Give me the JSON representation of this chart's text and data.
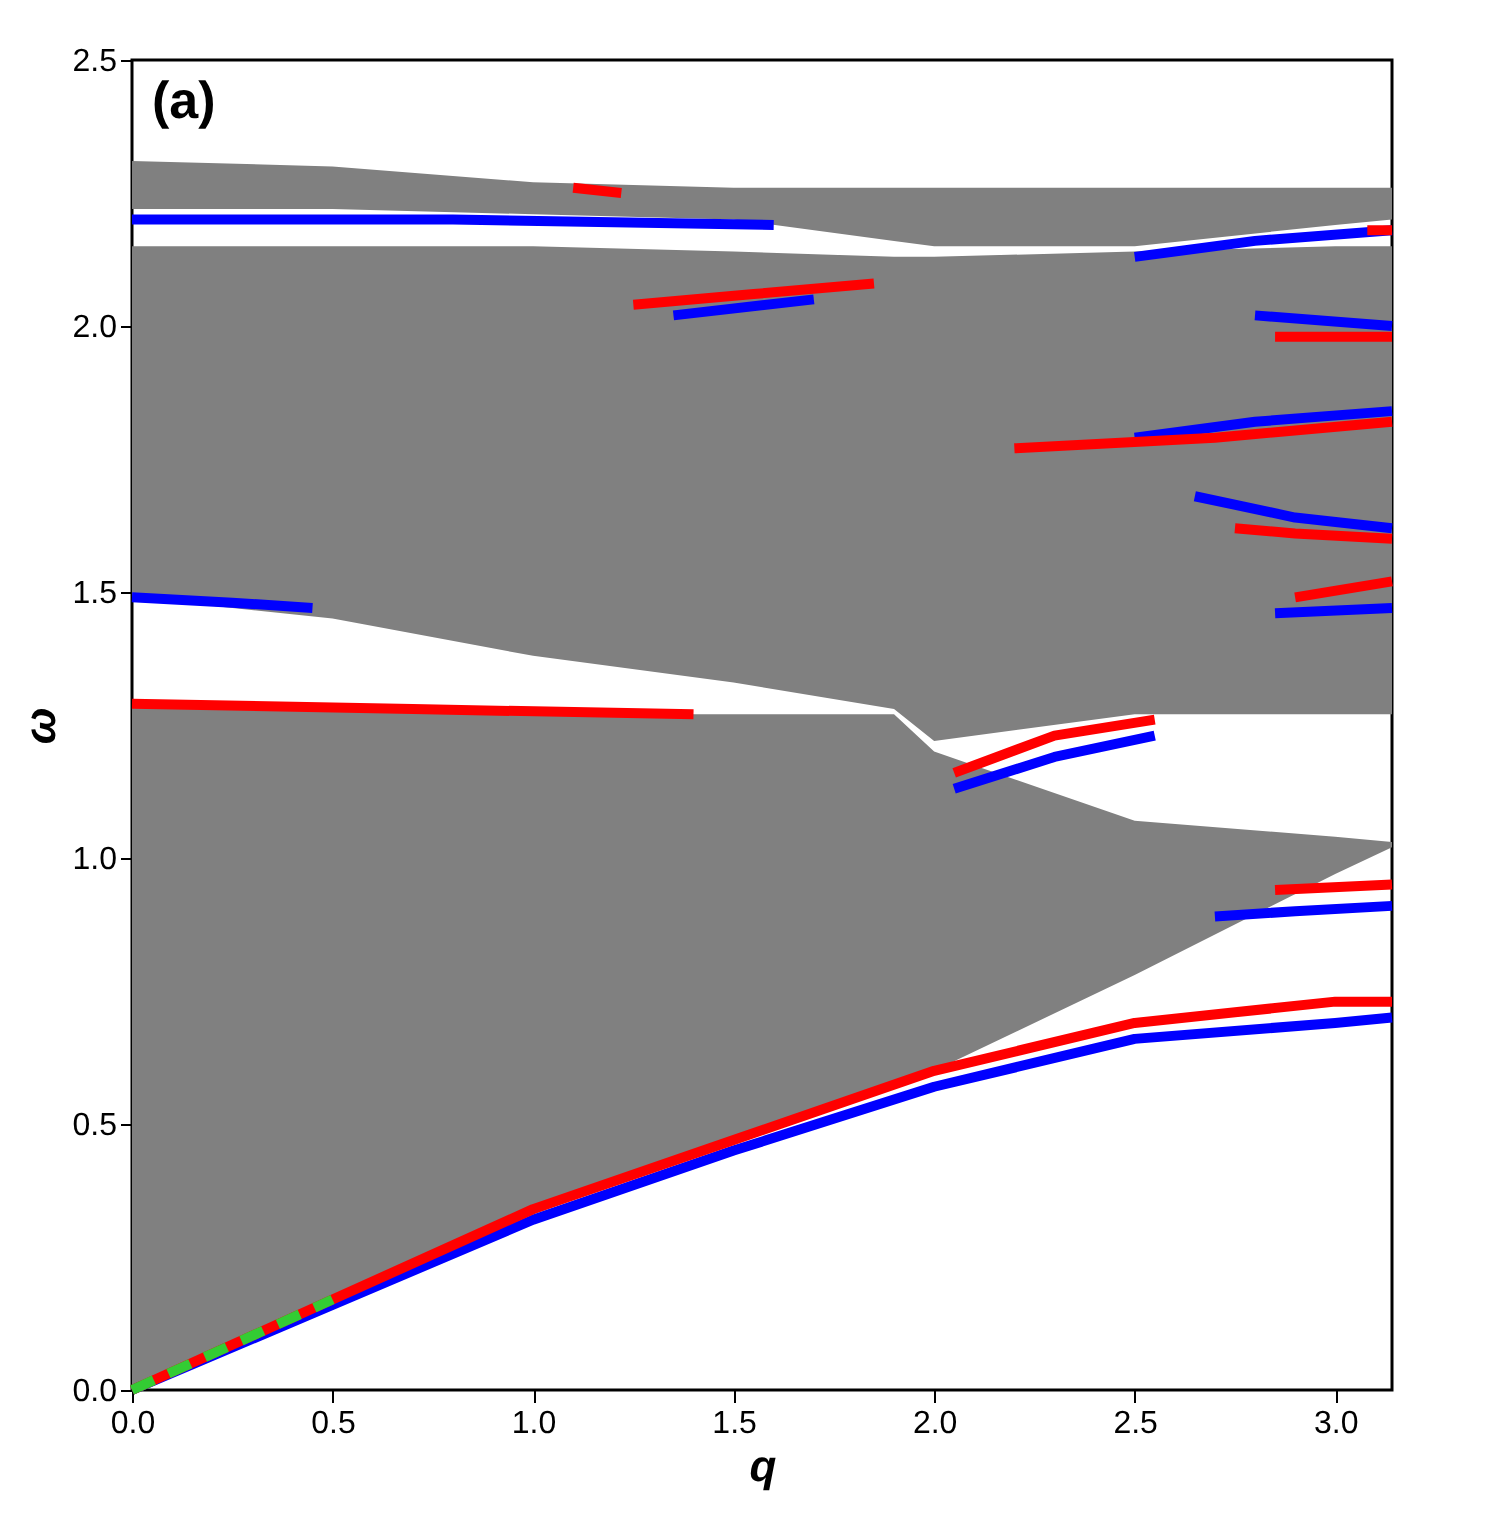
{
  "chart_data": {
    "type": "line",
    "xlabel": "q",
    "ylabel": "ω",
    "annotations": [
      "(a)"
    ],
    "xlim": [
      0,
      3.14159
    ],
    "ylim": [
      0,
      2.5
    ],
    "xticks": [
      {
        "value": 0,
        "label": "0.0"
      },
      {
        "value": 0.5,
        "label": "0.5"
      },
      {
        "value": 1,
        "label": "1.0"
      },
      {
        "value": 1.5,
        "label": "1.5"
      },
      {
        "value": 2,
        "label": "2.0"
      },
      {
        "value": 2.5,
        "label": "2.5"
      },
      {
        "value": 3,
        "label": "3.0"
      }
    ],
    "yticks": [
      {
        "value": 0,
        "label": "0.0"
      },
      {
        "value": 0.5,
        "label": "0.5"
      },
      {
        "value": 1,
        "label": "1.0"
      },
      {
        "value": 1.5,
        "label": "1.5"
      },
      {
        "value": 2,
        "label": "2.0"
      },
      {
        "value": 2.5,
        "label": "2.5"
      }
    ],
    "grid": false,
    "series": [
      {
        "color": "#808080",
        "x": [
          0,
          0.5,
          1,
          1.5,
          1.9,
          2,
          2.5,
          3,
          3.14159
        ],
        "values": [
          null,
          null,
          null,
          null,
          null,
          null,
          null,
          null,
          null
        ],
        "lower": [
          0,
          0.17,
          0.33,
          0.47,
          0.575,
          0.6,
          0.78,
          0.97,
          1.02
        ],
        "upper": [
          1.29,
          1.28,
          1.27,
          1.27,
          1.27,
          1.2,
          1.07,
          1.04,
          1.03
        ]
      },
      {
        "color": "#808080",
        "x": [
          0,
          0.5,
          1,
          1.5,
          1.9,
          2,
          2.5,
          3,
          3.14159
        ],
        "values": [
          null,
          null,
          null,
          null,
          null,
          null,
          null,
          null,
          null
        ],
        "lower": [
          1.49,
          1.45,
          1.38,
          1.33,
          1.28,
          1.22,
          1.27,
          1.27,
          1.27
        ],
        "upper": [
          2.15,
          2.15,
          2.15,
          2.14,
          2.13,
          2.13,
          2.14,
          2.15,
          2.15
        ]
      },
      {
        "color": "#808080",
        "x": [
          0,
          0.5,
          1,
          1.5,
          1.9,
          2,
          2.5,
          3,
          3.14159
        ],
        "values": [
          null,
          null,
          null,
          null,
          null,
          null,
          null,
          null,
          null
        ],
        "lower": [
          2.22,
          2.22,
          2.21,
          2.2,
          2.16,
          2.15,
          2.15,
          2.19,
          2.2
        ],
        "upper": [
          2.31,
          2.3,
          2.27,
          2.26,
          2.26,
          2.26,
          2.26,
          2.26,
          2.26
        ]
      },
      {
        "color": "#0000ff",
        "x": [
          0,
          0.8,
          1.6
        ],
        "values": [
          2.2,
          2.2,
          2.19
        ]
      },
      {
        "color": "#0000ff",
        "x": [
          0,
          0.25,
          0.45
        ],
        "values": [
          1.49,
          1.48,
          1.47
        ]
      },
      {
        "color": "#0000ff",
        "x": [
          0,
          0.5,
          1,
          1.5,
          2,
          2.5,
          3,
          3.14159
        ],
        "values": [
          0,
          0.16,
          0.32,
          0.45,
          0.57,
          0.66,
          0.69,
          0.7
        ]
      },
      {
        "color": "#0000ff",
        "x": [
          2.05,
          2.3,
          2.55
        ],
        "values": [
          1.13,
          1.19,
          1.23
        ]
      },
      {
        "color": "#0000ff",
        "x": [
          2.7,
          2.9,
          3.14159
        ],
        "values": [
          0.89,
          0.9,
          0.91
        ]
      },
      {
        "color": "#0000ff",
        "x": [
          2.5,
          2.8,
          3.14159
        ],
        "values": [
          2.13,
          2.16,
          2.18
        ]
      },
      {
        "color": "#0000ff",
        "x": [
          1.35,
          1.7
        ],
        "values": [
          2.02,
          2.05
        ]
      },
      {
        "color": "#0000ff",
        "x": [
          2.5,
          2.8,
          3.14159
        ],
        "values": [
          1.79,
          1.82,
          1.84
        ]
      },
      {
        "color": "#0000ff",
        "x": [
          2.65,
          2.9,
          3.14159
        ],
        "values": [
          1.68,
          1.64,
          1.62
        ]
      },
      {
        "color": "#0000ff",
        "x": [
          2.8,
          3.14159
        ],
        "values": [
          2.02,
          2.0
        ]
      },
      {
        "color": "#0000ff",
        "x": [
          2.85,
          3.14159
        ],
        "values": [
          1.46,
          1.47
        ]
      },
      {
        "color": "#ff0000",
        "x": [
          0,
          0.7,
          1.4
        ],
        "values": [
          1.29,
          1.28,
          1.27
        ]
      },
      {
        "color": "#ff0000",
        "x": [
          0,
          0.5,
          1,
          1.5,
          2,
          2.5,
          3,
          3.14159
        ],
        "values": [
          0,
          0.17,
          0.34,
          0.47,
          0.6,
          0.69,
          0.73,
          0.73
        ]
      },
      {
        "color": "#ff0000",
        "x": [
          2.05,
          2.3,
          2.55
        ],
        "values": [
          1.16,
          1.23,
          1.26
        ]
      },
      {
        "color": "#ff0000",
        "x": [
          1.25,
          1.55,
          1.85
        ],
        "values": [
          2.04,
          2.06,
          2.08
        ]
      },
      {
        "color": "#ff0000",
        "x": [
          1.1,
          1.22
        ],
        "values": [
          2.26,
          2.25
        ]
      },
      {
        "color": "#ff0000",
        "x": [
          2.2,
          2.7,
          3.14159
        ],
        "values": [
          1.77,
          1.79,
          1.82
        ]
      },
      {
        "color": "#ff0000",
        "x": [
          2.75,
          2.9,
          3.14159
        ],
        "values": [
          1.62,
          1.61,
          1.6
        ]
      },
      {
        "color": "#ff0000",
        "x": [
          2.85,
          3.14159
        ],
        "values": [
          1.98,
          1.98
        ]
      },
      {
        "color": "#ff0000",
        "x": [
          2.9,
          3.14159
        ],
        "values": [
          1.49,
          1.52
        ]
      },
      {
        "color": "#ff0000",
        "x": [
          2.85,
          3.14159
        ],
        "values": [
          0.94,
          0.95
        ]
      },
      {
        "color": "#ff0000",
        "x": [
          3.08,
          3.14159
        ],
        "values": [
          2.18,
          2.18
        ]
      },
      {
        "color": "#33cc33",
        "line_style": "dashed",
        "x": [
          0,
          0.25,
          0.5
        ],
        "values": [
          0,
          0.085,
          0.17
        ]
      }
    ]
  }
}
